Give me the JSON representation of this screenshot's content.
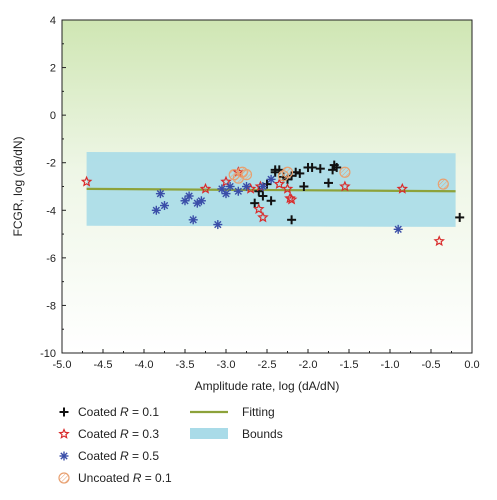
{
  "chart_data": {
    "type": "scatter",
    "title": "",
    "xlabel": "Amplitude rate, log (dA/dN)",
    "ylabel": "FCGR, log (da/dN)",
    "xlim": [
      -5.0,
      0.0
    ],
    "ylim": [
      -10,
      4
    ],
    "xticks": [
      "-5.0",
      "-4.5",
      "-4.0",
      "-3.5",
      "-3.0",
      "-2.5",
      "-2.0",
      "-1.5",
      "-1.0",
      "-0.5",
      "0.0"
    ],
    "yticks": [
      "-10",
      "-8",
      "-6",
      "-4",
      "-2",
      "0",
      "2",
      "4"
    ],
    "background": "gradient light green (top) to white (bottom)",
    "series": [
      {
        "name": "Coated R = 0.1",
        "marker": "plus",
        "color": "#111111",
        "x": [
          -2.65,
          -2.6,
          -2.55,
          -2.5,
          -2.45,
          -2.4,
          -2.35,
          -2.3,
          -2.25,
          -2.2,
          -2.15,
          -2.1,
          -2.05,
          -2.0,
          -1.95,
          -1.85,
          -1.75,
          -1.7,
          -1.68,
          -1.65,
          -2.2,
          -2.4,
          -0.15
        ],
        "y": [
          -3.7,
          -3.2,
          -3.4,
          -2.9,
          -3.6,
          -2.4,
          -2.3,
          -2.6,
          -2.7,
          -2.55,
          -2.4,
          -2.45,
          -3.0,
          -2.2,
          -2.2,
          -2.25,
          -2.85,
          -2.3,
          -2.1,
          -2.2,
          -4.4,
          -2.3,
          -4.3
        ]
      },
      {
        "name": "Coated R = 0.3",
        "marker": "star",
        "color": "#d92b2b",
        "x": [
          -4.7,
          -3.25,
          -3.0,
          -2.85,
          -2.7,
          -2.6,
          -2.55,
          -2.35,
          -2.25,
          -2.22,
          -2.2,
          -2.58,
          -1.55,
          -0.85,
          -0.4
        ],
        "y": [
          -2.8,
          -3.1,
          -2.8,
          -2.4,
          -3.1,
          -3.95,
          -4.3,
          -2.9,
          -3.1,
          -3.5,
          -3.55,
          -3.0,
          -3.0,
          -3.1,
          -5.3
        ]
      },
      {
        "name": "Coated R = 0.5",
        "marker": "asterisk",
        "color": "#3a4ea8",
        "x": [
          -3.85,
          -3.8,
          -3.75,
          -3.5,
          -3.45,
          -3.4,
          -3.35,
          -3.3,
          -3.1,
          -3.05,
          -3.0,
          -2.95,
          -2.85,
          -2.75,
          -2.55,
          -2.45,
          -0.9
        ],
        "y": [
          -4.0,
          -3.3,
          -3.8,
          -3.6,
          -3.4,
          -4.4,
          -3.7,
          -3.6,
          -4.6,
          -3.1,
          -3.3,
          -3.0,
          -3.2,
          -3.0,
          -3.0,
          -2.7,
          -4.8
        ]
      },
      {
        "name": "Uncoated R = 0.1",
        "marker": "hatched-circle",
        "color": "#e8a070",
        "x": [
          -2.9,
          -2.85,
          -2.8,
          -2.75,
          -2.3,
          -2.25,
          -1.55,
          -0.35
        ],
        "y": [
          -2.5,
          -2.65,
          -2.4,
          -2.5,
          -2.55,
          -2.4,
          -2.4,
          -2.9
        ]
      }
    ],
    "fitting": {
      "name": "Fitting",
      "color": "#8da23a",
      "x": [
        -4.7,
        -0.2
      ],
      "y": [
        -3.1,
        -3.2
      ]
    },
    "bounds": {
      "name": "Bounds",
      "color": "#a9dbe8",
      "x": [
        -4.7,
        -0.2
      ],
      "y_upper": [
        -1.55,
        -1.6
      ],
      "y_lower": [
        -4.65,
        -4.7
      ]
    },
    "legend_placement": "bottom"
  }
}
